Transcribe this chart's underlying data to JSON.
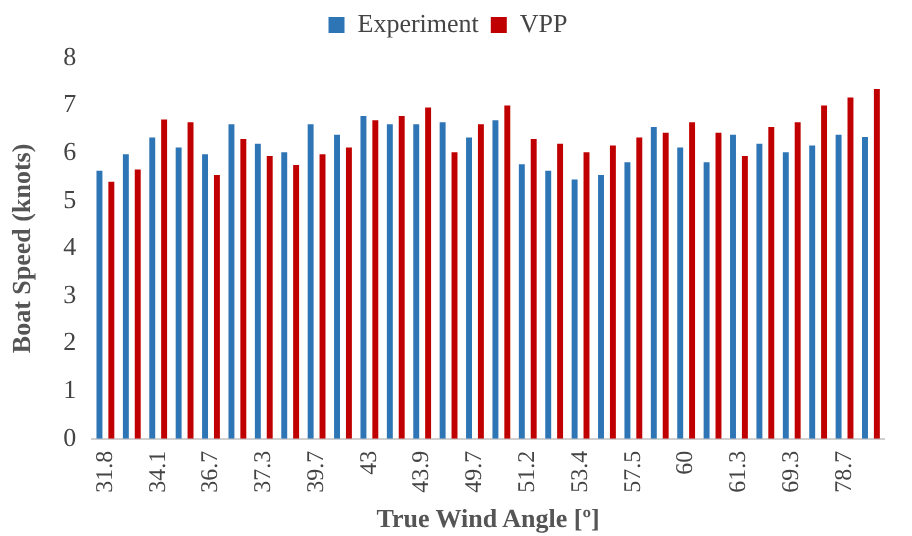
{
  "chart_data": {
    "type": "bar",
    "xlabel": "True Wind Angle [º]",
    "ylabel": "Boat Speed (knots)",
    "categories": [
      "31.8",
      null,
      "34.1",
      null,
      "36.7",
      null,
      "37.3",
      null,
      "39.7",
      null,
      "43",
      null,
      "43.9",
      null,
      "49.7",
      null,
      "51.2",
      null,
      "53.4",
      null,
      "57.5",
      null,
      "60",
      null,
      "61.3",
      null,
      "69.3",
      null,
      "78.7",
      null
    ],
    "series": [
      {
        "name": "Experiment",
        "color": "#2e75b6",
        "values": [
          5.63,
          5.98,
          6.33,
          6.12,
          5.98,
          6.61,
          6.2,
          6.02,
          6.61,
          6.39,
          6.78,
          6.61,
          6.61,
          6.65,
          6.33,
          6.69,
          5.77,
          5.63,
          5.45,
          5.54,
          5.81,
          6.55,
          6.12,
          5.81,
          6.39,
          6.2,
          6.02,
          6.16,
          6.39,
          6.34
        ]
      },
      {
        "name": "VPP",
        "color": "#c00000",
        "values": [
          5.4,
          5.66,
          6.71,
          6.65,
          5.54,
          6.3,
          5.94,
          5.75,
          5.98,
          6.12,
          6.69,
          6.78,
          6.96,
          6.02,
          6.61,
          7.0,
          6.3,
          6.2,
          6.02,
          6.16,
          6.33,
          6.43,
          6.65,
          6.43,
          5.94,
          6.55,
          6.65,
          7.0,
          7.17,
          7.35
        ]
      }
    ],
    "ylim": [
      0,
      8
    ],
    "yticks": [
      0,
      1,
      2,
      3,
      4,
      5,
      6,
      7,
      8
    ],
    "grid": false,
    "legend": "top"
  }
}
